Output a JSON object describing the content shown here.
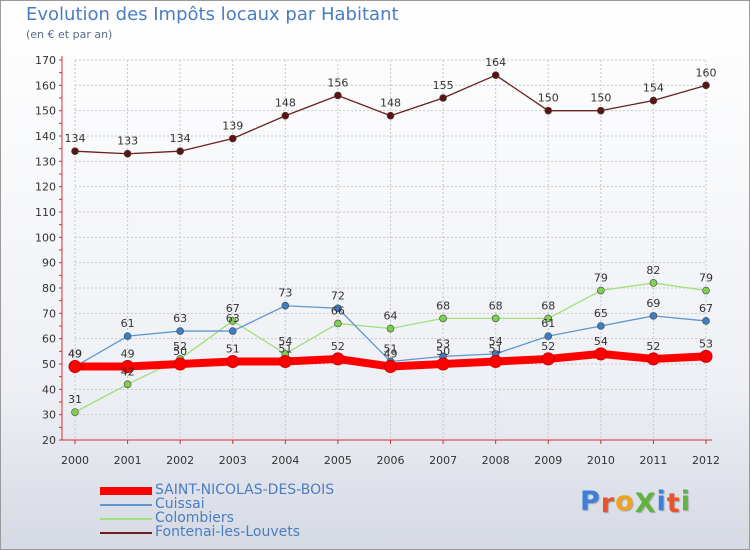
{
  "title": "Evolution des Impôts locaux par Habitant",
  "subtitle": "(en € et par an)",
  "logo": {
    "text": "ProXiti",
    "colors": [
      "#3d7fd8",
      "#e8532d",
      "#f3a21c",
      "#61b33f",
      "#3d7fd8",
      "#e8532d",
      "#61b33f"
    ]
  },
  "chart_data": {
    "type": "line",
    "title": "Evolution des Impôts locaux par Habitant",
    "subtitle": "(en € et par an)",
    "xlabel": "",
    "ylabel": "",
    "ylim": [
      20,
      170
    ],
    "yticks": [
      20,
      30,
      40,
      50,
      60,
      70,
      80,
      90,
      100,
      110,
      120,
      130,
      140,
      150,
      160,
      170
    ],
    "categories": [
      "2000",
      "2001",
      "2002",
      "2003",
      "2004",
      "2005",
      "2006",
      "2007",
      "2008",
      "2009",
      "2010",
      "2011",
      "2012"
    ],
    "series": [
      {
        "name": "Fontenai-les-Louvets",
        "color": "#6b1f1f",
        "marker": "#5a1414",
        "width": 1.3,
        "values": [
          134,
          133,
          134,
          139,
          148,
          156,
          148,
          155,
          164,
          150,
          150,
          154,
          160
        ]
      },
      {
        "name": "Colombiers",
        "color": "#9fe07a",
        "marker": "#7ed14f",
        "width": 1.3,
        "values": [
          31,
          42,
          52,
          67,
          54,
          66,
          64,
          68,
          68,
          68,
          79,
          82,
          79
        ]
      },
      {
        "name": "Cuissai",
        "color": "#5c98cf",
        "marker": "#3a7ec4",
        "width": 1.3,
        "values": [
          49,
          61,
          63,
          63,
          73,
          72,
          51,
          53,
          54,
          61,
          65,
          69,
          67
        ]
      },
      {
        "name": "SAINT-NICOLAS-DES-BOIS",
        "color": "#ff0000",
        "marker": "#ff0000",
        "width": 8,
        "values": [
          49,
          49,
          50,
          51,
          51,
          52,
          49,
          50,
          51,
          52,
          54,
          52,
          53
        ]
      }
    ],
    "legend": {
      "position": "bottom-left",
      "order": [
        "SAINT-NICOLAS-DES-BOIS",
        "Cuissai",
        "Colombiers",
        "Fontenai-les-Louvets"
      ]
    }
  }
}
